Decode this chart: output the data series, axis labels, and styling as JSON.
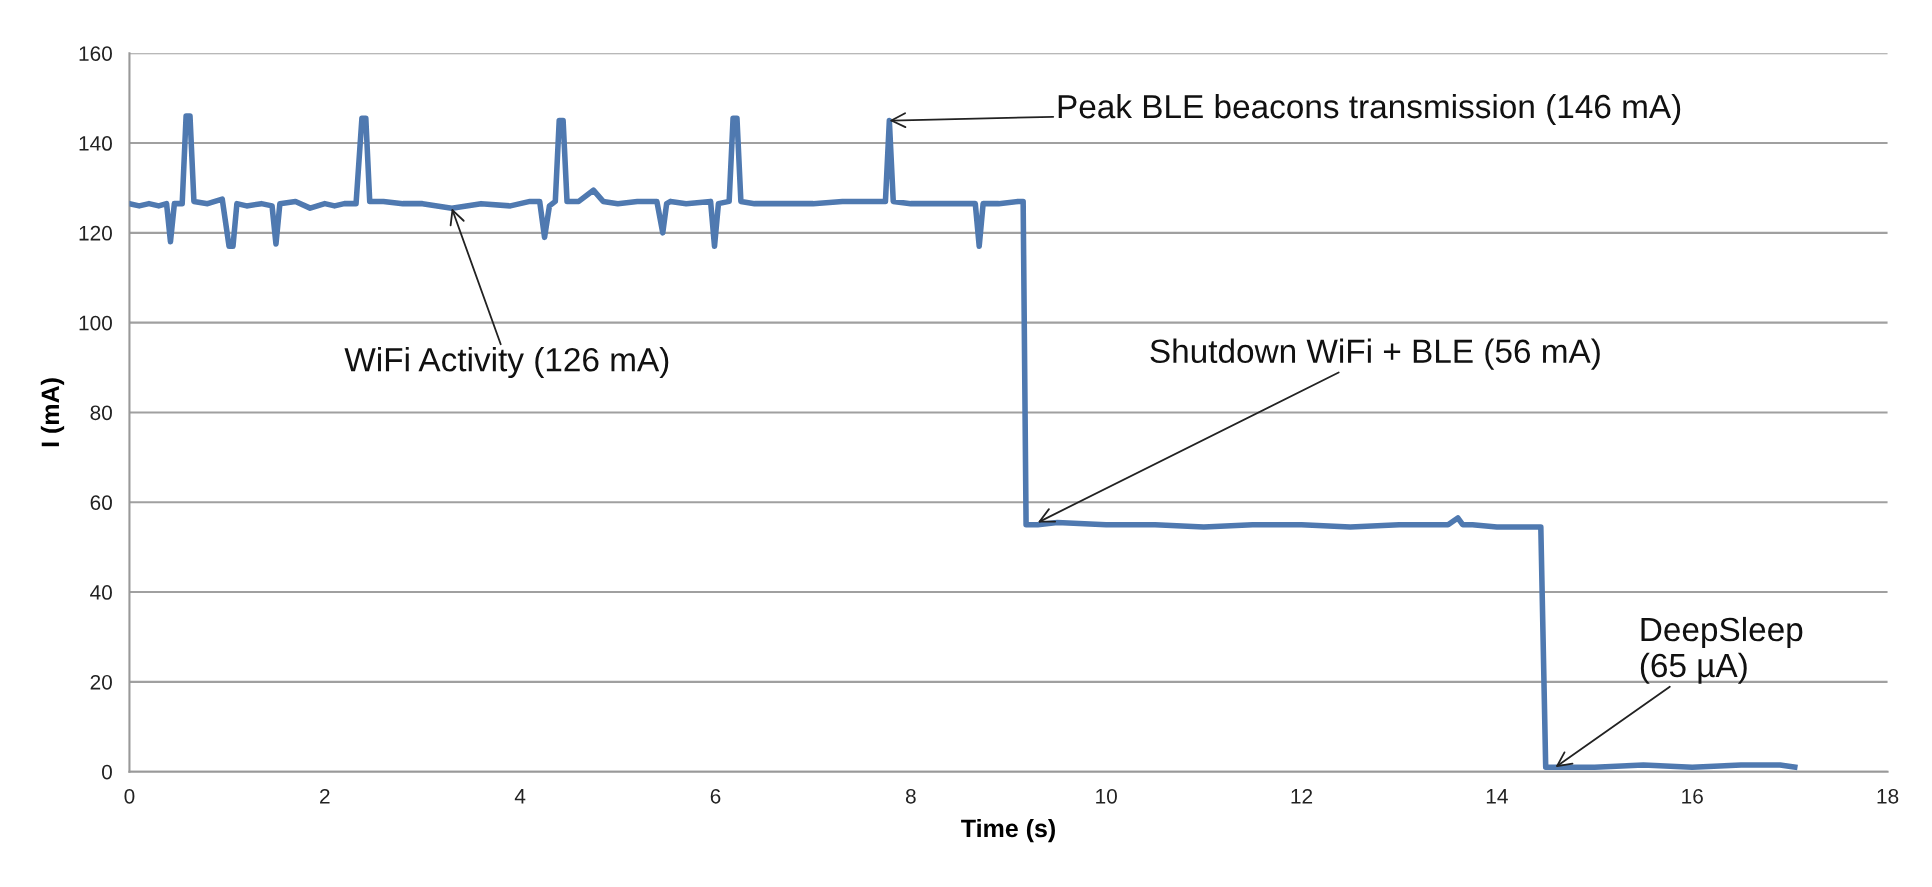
{
  "chart_data": {
    "type": "line",
    "xlabel": "Time (s)",
    "ylabel": "I (mA)",
    "xlim": [
      0,
      18
    ],
    "xticks": [
      0,
      2,
      4,
      6,
      8,
      10,
      12,
      14,
      16,
      18
    ],
    "ylim": [
      0,
      160
    ],
    "yticks": [
      0,
      20,
      40,
      60,
      80,
      100,
      120,
      140,
      160
    ],
    "grid": "y",
    "legend": false,
    "marker": "none",
    "line_style": "solid",
    "series": [
      {
        "color": "#4f79b0",
        "x": [
          0,
          0.1,
          0.2,
          0.3,
          0.38,
          0.42,
          0.46,
          0.54,
          0.58,
          0.62,
          0.66,
          0.8,
          0.95,
          1.02,
          1.06,
          1.1,
          1.2,
          1.35,
          1.46,
          1.5,
          1.54,
          1.7,
          1.85,
          2.0,
          2.1,
          2.2,
          2.32,
          2.38,
          2.42,
          2.46,
          2.6,
          2.8,
          3.0,
          3.3,
          3.6,
          3.9,
          4.1,
          4.2,
          4.25,
          4.3,
          4.36,
          4.4,
          4.44,
          4.48,
          4.6,
          4.75,
          4.85,
          5.0,
          5.2,
          5.4,
          5.46,
          5.5,
          5.54,
          5.7,
          5.95,
          5.99,
          6.03,
          6.14,
          6.18,
          6.22,
          6.26,
          6.4,
          6.7,
          7.0,
          7.3,
          7.6,
          7.74,
          7.78,
          7.82,
          8.0,
          8.3,
          8.6,
          8.66,
          8.7,
          8.74,
          8.9,
          9.1,
          9.15,
          9.18,
          9.3,
          9.5,
          10,
          10.5,
          11,
          11.5,
          12,
          12.5,
          13,
          13.5,
          13.6,
          13.65,
          13.75,
          14.0,
          14.3,
          14.45,
          14.5,
          14.6,
          15,
          15.5,
          16,
          16.5,
          16.9,
          17.05
        ],
        "values": [
          126.5,
          126,
          126.5,
          126,
          126.5,
          118,
          126.5,
          126.5,
          146,
          146,
          127,
          126.5,
          127.5,
          117,
          117,
          126.5,
          126,
          126.5,
          126,
          117.5,
          126.5,
          127,
          125.5,
          126.5,
          126,
          126.5,
          126.5,
          145.5,
          145.5,
          127,
          127,
          126.5,
          126.5,
          125.5,
          126.5,
          126,
          127,
          127,
          119,
          126,
          127,
          145,
          145,
          127,
          127,
          129.5,
          127,
          126.5,
          127,
          127,
          120,
          126.5,
          127,
          126.5,
          127,
          117,
          126.5,
          127,
          145.5,
          145.5,
          127,
          126.5,
          126.5,
          126.5,
          127,
          127,
          127,
          145,
          127,
          126.5,
          126.5,
          126.5,
          126.5,
          117,
          126.5,
          126.5,
          127,
          127,
          55,
          55,
          55.5,
          55,
          55,
          54.5,
          55,
          55,
          54.5,
          55,
          55,
          56.5,
          55,
          55,
          54.5,
          54.5,
          54.5,
          1,
          1,
          1,
          1.5,
          1,
          1.5,
          1.5,
          1
        ]
      }
    ],
    "annotations": [
      {
        "text": "Peak BLE beacons transmission (146 mA)",
        "x": 7.78,
        "y": 145
      },
      {
        "text": "WiFi Activity (126 mA)",
        "x": 3.3,
        "y": 125.5
      },
      {
        "text": "Shutdown WiFi + BLE (56 mA)",
        "x": 9.3,
        "y": 55.5
      },
      {
        "text": "DeepSleep\n(65 µA)",
        "x": 14.6,
        "y": 1
      }
    ]
  }
}
